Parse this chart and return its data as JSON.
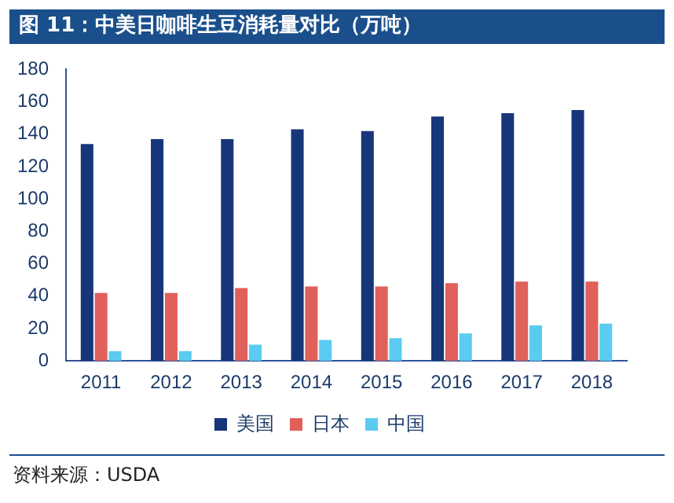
{
  "chart_data": {
    "type": "bar",
    "title": "图 11：中美日咖啡生豆消耗量对比（万吨）",
    "categories": [
      "2011",
      "2012",
      "2013",
      "2014",
      "2015",
      "2016",
      "2017",
      "2018"
    ],
    "series": [
      {
        "name": "美国",
        "color": "#17367a",
        "values": [
          134,
          137,
          137,
          143,
          142,
          151,
          153,
          155
        ]
      },
      {
        "name": "日本",
        "color": "#e0605b",
        "values": [
          42,
          42,
          45,
          46,
          46,
          48,
          49,
          49
        ]
      },
      {
        "name": "中国",
        "color": "#5ccbf2",
        "values": [
          6,
          6,
          10,
          13,
          14,
          17,
          22,
          23
        ]
      }
    ],
    "ylim": [
      0,
      180
    ],
    "yticks": [
      0,
      20,
      40,
      60,
      80,
      100,
      120,
      140,
      160,
      180
    ],
    "grid": false,
    "legend": "bottom",
    "annotations": [
      "资料来源：USDA"
    ]
  }
}
